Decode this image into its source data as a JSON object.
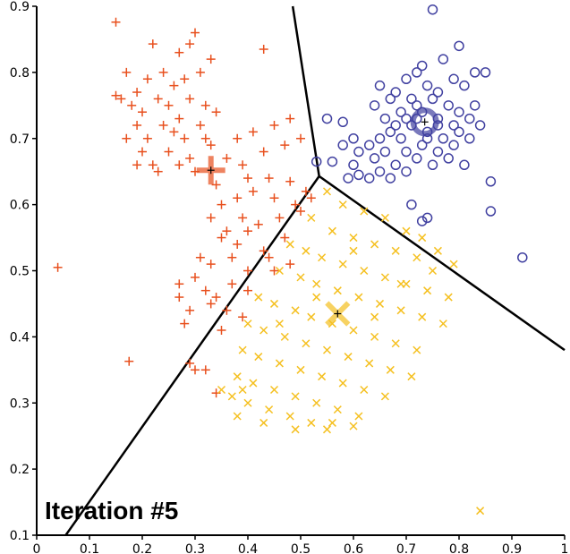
{
  "chart_data": {
    "type": "scatter",
    "title": "",
    "xlabel": "",
    "ylabel": "",
    "xlim": [
      0,
      1
    ],
    "ylim": [
      0.1,
      0.9
    ],
    "x_ticks": [
      "0",
      "0.1",
      "0.2",
      "0.3",
      "0.4",
      "0.5",
      "0.6",
      "0.7",
      "0.8",
      "0.9",
      "1"
    ],
    "y_ticks": [
      "0.1",
      "0.2",
      "0.3",
      "0.4",
      "0.5",
      "0.6",
      "0.7",
      "0.8",
      "0.9"
    ],
    "annotation": "Iteration #5",
    "grid": false,
    "legend": "none",
    "boundaries": [
      {
        "from": [
          0.485,
          0.9
        ],
        "to": [
          0.535,
          0.643
        ]
      },
      {
        "from": [
          0.535,
          0.643
        ],
        "to": [
          0.055,
          0.1
        ]
      },
      {
        "from": [
          0.535,
          0.643
        ],
        "to": [
          1.0,
          0.38
        ]
      }
    ],
    "series": [
      {
        "marker": "plus",
        "color": "#e8501e",
        "centroid": [
          0.33,
          0.652
        ],
        "points": [
          [
            0.15,
            0.876
          ],
          [
            0.22,
            0.843
          ],
          [
            0.29,
            0.843
          ],
          [
            0.3,
            0.86
          ],
          [
            0.27,
            0.83
          ],
          [
            0.43,
            0.835
          ],
          [
            0.17,
            0.8
          ],
          [
            0.19,
            0.77
          ],
          [
            0.21,
            0.79
          ],
          [
            0.24,
            0.8
          ],
          [
            0.26,
            0.78
          ],
          [
            0.28,
            0.79
          ],
          [
            0.31,
            0.8
          ],
          [
            0.33,
            0.82
          ],
          [
            0.16,
            0.76
          ],
          [
            0.18,
            0.75
          ],
          [
            0.2,
            0.74
          ],
          [
            0.23,
            0.76
          ],
          [
            0.25,
            0.75
          ],
          [
            0.27,
            0.73
          ],
          [
            0.29,
            0.76
          ],
          [
            0.32,
            0.75
          ],
          [
            0.34,
            0.74
          ],
          [
            0.15,
            0.765
          ],
          [
            0.19,
            0.72
          ],
          [
            0.21,
            0.7
          ],
          [
            0.24,
            0.72
          ],
          [
            0.26,
            0.71
          ],
          [
            0.28,
            0.7
          ],
          [
            0.31,
            0.72
          ],
          [
            0.33,
            0.69
          ],
          [
            0.17,
            0.7
          ],
          [
            0.2,
            0.68
          ],
          [
            0.22,
            0.66
          ],
          [
            0.25,
            0.68
          ],
          [
            0.29,
            0.67
          ],
          [
            0.32,
            0.7
          ],
          [
            0.19,
            0.66
          ],
          [
            0.23,
            0.65
          ],
          [
            0.27,
            0.66
          ],
          [
            0.38,
            0.7
          ],
          [
            0.41,
            0.71
          ],
          [
            0.45,
            0.72
          ],
          [
            0.48,
            0.73
          ],
          [
            0.36,
            0.67
          ],
          [
            0.39,
            0.66
          ],
          [
            0.43,
            0.68
          ],
          [
            0.47,
            0.69
          ],
          [
            0.5,
            0.7
          ],
          [
            0.4,
            0.64
          ],
          [
            0.44,
            0.64
          ],
          [
            0.48,
            0.635
          ],
          [
            0.51,
            0.62
          ],
          [
            0.3,
            0.65
          ],
          [
            0.34,
            0.63
          ],
          [
            0.35,
            0.6
          ],
          [
            0.38,
            0.61
          ],
          [
            0.41,
            0.62
          ],
          [
            0.45,
            0.61
          ],
          [
            0.49,
            0.6
          ],
          [
            0.52,
            0.61
          ],
          [
            0.33,
            0.58
          ],
          [
            0.36,
            0.56
          ],
          [
            0.39,
            0.58
          ],
          [
            0.42,
            0.57
          ],
          [
            0.46,
            0.58
          ],
          [
            0.5,
            0.59
          ],
          [
            0.35,
            0.55
          ],
          [
            0.38,
            0.54
          ],
          [
            0.4,
            0.56
          ],
          [
            0.43,
            0.53
          ],
          [
            0.47,
            0.55
          ],
          [
            0.31,
            0.52
          ],
          [
            0.33,
            0.51
          ],
          [
            0.37,
            0.52
          ],
          [
            0.4,
            0.5
          ],
          [
            0.44,
            0.52
          ],
          [
            0.45,
            0.5
          ],
          [
            0.48,
            0.51
          ],
          [
            0.27,
            0.48
          ],
          [
            0.3,
            0.49
          ],
          [
            0.32,
            0.47
          ],
          [
            0.34,
            0.46
          ],
          [
            0.37,
            0.48
          ],
          [
            0.4,
            0.47
          ],
          [
            0.27,
            0.46
          ],
          [
            0.29,
            0.44
          ],
          [
            0.33,
            0.45
          ],
          [
            0.36,
            0.44
          ],
          [
            0.39,
            0.43
          ],
          [
            0.28,
            0.42
          ],
          [
            0.35,
            0.41
          ],
          [
            0.29,
            0.36
          ],
          [
            0.3,
            0.35
          ],
          [
            0.32,
            0.35
          ],
          [
            0.04,
            0.505
          ],
          [
            0.175,
            0.363
          ],
          [
            0.34,
            0.315
          ]
        ]
      },
      {
        "marker": "circle",
        "color": "#4040a0",
        "centroid": [
          0.735,
          0.725
        ],
        "points": [
          [
            0.75,
            0.895
          ],
          [
            0.8,
            0.84
          ],
          [
            0.73,
            0.81
          ],
          [
            0.72,
            0.8
          ],
          [
            0.7,
            0.79
          ],
          [
            0.77,
            0.82
          ],
          [
            0.83,
            0.8
          ],
          [
            0.65,
            0.78
          ],
          [
            0.68,
            0.77
          ],
          [
            0.71,
            0.76
          ],
          [
            0.74,
            0.78
          ],
          [
            0.76,
            0.77
          ],
          [
            0.79,
            0.79
          ],
          [
            0.81,
            0.78
          ],
          [
            0.64,
            0.75
          ],
          [
            0.67,
            0.76
          ],
          [
            0.69,
            0.74
          ],
          [
            0.72,
            0.75
          ],
          [
            0.75,
            0.76
          ],
          [
            0.78,
            0.75
          ],
          [
            0.8,
            0.74
          ],
          [
            0.83,
            0.75
          ],
          [
            0.66,
            0.73
          ],
          [
            0.68,
            0.72
          ],
          [
            0.7,
            0.73
          ],
          [
            0.73,
            0.74
          ],
          [
            0.76,
            0.73
          ],
          [
            0.79,
            0.72
          ],
          [
            0.82,
            0.73
          ],
          [
            0.84,
            0.72
          ],
          [
            0.65,
            0.7
          ],
          [
            0.67,
            0.71
          ],
          [
            0.69,
            0.7
          ],
          [
            0.71,
            0.72
          ],
          [
            0.74,
            0.71
          ],
          [
            0.77,
            0.7
          ],
          [
            0.8,
            0.71
          ],
          [
            0.82,
            0.7
          ],
          [
            0.58,
            0.69
          ],
          [
            0.6,
            0.7
          ],
          [
            0.63,
            0.69
          ],
          [
            0.66,
            0.68
          ],
          [
            0.7,
            0.68
          ],
          [
            0.73,
            0.69
          ],
          [
            0.76,
            0.68
          ],
          [
            0.79,
            0.69
          ],
          [
            0.55,
            0.73
          ],
          [
            0.58,
            0.725
          ],
          [
            0.61,
            0.68
          ],
          [
            0.64,
            0.67
          ],
          [
            0.68,
            0.66
          ],
          [
            0.72,
            0.67
          ],
          [
            0.75,
            0.66
          ],
          [
            0.78,
            0.67
          ],
          [
            0.81,
            0.66
          ],
          [
            0.56,
            0.665
          ],
          [
            0.6,
            0.66
          ],
          [
            0.65,
            0.65
          ],
          [
            0.7,
            0.65
          ],
          [
            0.59,
            0.64
          ],
          [
            0.63,
            0.64
          ],
          [
            0.67,
            0.64
          ],
          [
            0.74,
            0.7
          ],
          [
            0.72,
            0.73
          ],
          [
            0.76,
            0.72
          ],
          [
            0.85,
            0.8
          ],
          [
            0.86,
            0.635
          ],
          [
            0.86,
            0.59
          ],
          [
            0.92,
            0.52
          ],
          [
            0.71,
            0.6
          ],
          [
            0.74,
            0.58
          ],
          [
            0.73,
            0.575
          ],
          [
            0.53,
            0.665
          ],
          [
            0.61,
            0.645
          ]
        ]
      },
      {
        "marker": "x",
        "color": "#f5c020",
        "centroid": [
          0.57,
          0.435
        ],
        "points": [
          [
            0.55,
            0.62
          ],
          [
            0.58,
            0.6
          ],
          [
            0.62,
            0.59
          ],
          [
            0.66,
            0.58
          ],
          [
            0.7,
            0.56
          ],
          [
            0.73,
            0.55
          ],
          [
            0.76,
            0.53
          ],
          [
            0.79,
            0.51
          ],
          [
            0.52,
            0.58
          ],
          [
            0.56,
            0.56
          ],
          [
            0.6,
            0.55
          ],
          [
            0.64,
            0.54
          ],
          [
            0.68,
            0.53
          ],
          [
            0.72,
            0.52
          ],
          [
            0.75,
            0.5
          ],
          [
            0.48,
            0.54
          ],
          [
            0.51,
            0.53
          ],
          [
            0.54,
            0.52
          ],
          [
            0.58,
            0.51
          ],
          [
            0.62,
            0.5
          ],
          [
            0.66,
            0.49
          ],
          [
            0.7,
            0.48
          ],
          [
            0.74,
            0.47
          ],
          [
            0.78,
            0.46
          ],
          [
            0.46,
            0.5
          ],
          [
            0.5,
            0.49
          ],
          [
            0.53,
            0.48
          ],
          [
            0.57,
            0.47
          ],
          [
            0.61,
            0.46
          ],
          [
            0.65,
            0.45
          ],
          [
            0.69,
            0.44
          ],
          [
            0.73,
            0.43
          ],
          [
            0.77,
            0.42
          ],
          [
            0.42,
            0.46
          ],
          [
            0.45,
            0.45
          ],
          [
            0.49,
            0.44
          ],
          [
            0.52,
            0.43
          ],
          [
            0.56,
            0.42
          ],
          [
            0.6,
            0.41
          ],
          [
            0.64,
            0.4
          ],
          [
            0.68,
            0.39
          ],
          [
            0.72,
            0.38
          ],
          [
            0.4,
            0.42
          ],
          [
            0.43,
            0.41
          ],
          [
            0.47,
            0.4
          ],
          [
            0.51,
            0.39
          ],
          [
            0.55,
            0.38
          ],
          [
            0.59,
            0.37
          ],
          [
            0.63,
            0.36
          ],
          [
            0.67,
            0.35
          ],
          [
            0.71,
            0.34
          ],
          [
            0.39,
            0.38
          ],
          [
            0.42,
            0.37
          ],
          [
            0.46,
            0.36
          ],
          [
            0.5,
            0.35
          ],
          [
            0.54,
            0.34
          ],
          [
            0.58,
            0.33
          ],
          [
            0.62,
            0.32
          ],
          [
            0.66,
            0.31
          ],
          [
            0.38,
            0.34
          ],
          [
            0.41,
            0.33
          ],
          [
            0.45,
            0.32
          ],
          [
            0.49,
            0.31
          ],
          [
            0.53,
            0.3
          ],
          [
            0.57,
            0.29
          ],
          [
            0.61,
            0.28
          ],
          [
            0.4,
            0.3
          ],
          [
            0.44,
            0.29
          ],
          [
            0.48,
            0.28
          ],
          [
            0.52,
            0.27
          ],
          [
            0.56,
            0.27
          ],
          [
            0.38,
            0.28
          ],
          [
            0.43,
            0.27
          ],
          [
            0.49,
            0.26
          ],
          [
            0.55,
            0.26
          ],
          [
            0.6,
            0.265
          ],
          [
            0.35,
            0.32
          ],
          [
            0.37,
            0.31
          ],
          [
            0.39,
            0.32
          ],
          [
            0.84,
            0.137
          ],
          [
            0.6,
            0.53
          ],
          [
            0.64,
            0.43
          ],
          [
            0.69,
            0.48
          ],
          [
            0.46,
            0.42
          ],
          [
            0.53,
            0.46
          ]
        ]
      }
    ]
  }
}
